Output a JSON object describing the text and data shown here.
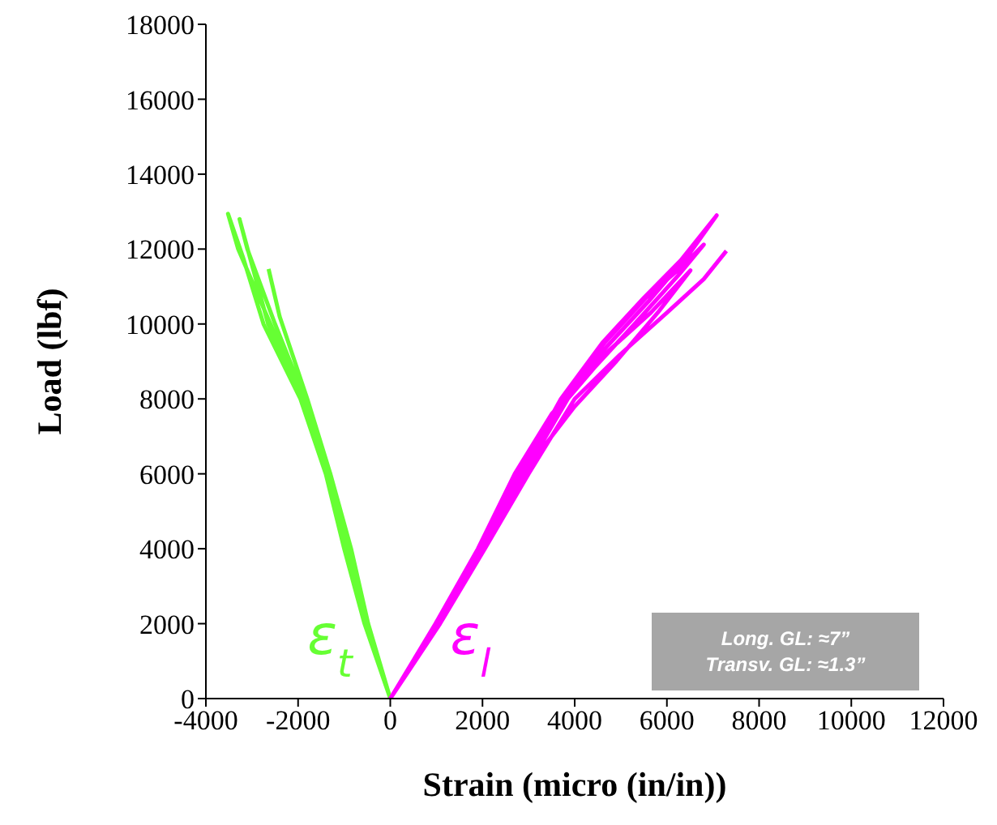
{
  "chart_data": {
    "type": "line",
    "xlabel": "Strain (micro (in/in))",
    "ylabel": "Load (lbf)",
    "xlim": [
      -4000,
      12000
    ],
    "xticks": [
      -4000,
      -2000,
      0,
      2000,
      4000,
      6000,
      8000,
      10000,
      12000
    ],
    "ylim": [
      0,
      18000
    ],
    "yticks": [
      0,
      2000,
      4000,
      6000,
      8000,
      10000,
      12000,
      14000,
      16000,
      18000
    ],
    "marker": "none",
    "line_style": "solid",
    "annotations": [
      "Long. GL: ≈7”",
      "Transv. GL: ≈1.3”"
    ],
    "series": [
      {
        "name": "ε$_{t}$",
        "color": "#66ff33",
        "x": [
          0,
          -560,
          -1000,
          -1400,
          -1950,
          -2750,
          -3200,
          -3520,
          -3300,
          -2600,
          -1900,
          -1350,
          -900,
          -500,
          0,
          -520,
          -950,
          -1350,
          -1900,
          -2650,
          -3050,
          -3270,
          -3100,
          -2500,
          -1850,
          -1300,
          -850,
          -480,
          0,
          -500,
          -900,
          -1300,
          -1800,
          -2400,
          -2640
        ],
        "values": [
          0,
          2000,
          4000,
          6000,
          8000,
          10000,
          11800,
          12940,
          12000,
          10000,
          8000,
          6000,
          4000,
          2000,
          0,
          2000,
          4000,
          6000,
          8000,
          10000,
          11800,
          12800,
          12000,
          10000,
          8000,
          6000,
          4000,
          2000,
          0,
          2000,
          4000,
          6000,
          8000,
          10200,
          11470
        ]
      },
      {
        "name": "ε$_{l}$",
        "color": "#ff00ff",
        "x": [
          0,
          1020,
          1950,
          2800,
          3700,
          4600,
          5500,
          6300,
          7080,
          6500,
          5600,
          4700,
          3800,
          2850,
          1950,
          1000,
          0,
          1000,
          1950,
          2850,
          3750,
          4650,
          5550,
          6300,
          6800,
          6250,
          5300,
          4400,
          3500,
          2700,
          1900,
          980,
          0,
          1050,
          2000,
          2900,
          3850,
          4750,
          5650,
          6510,
          5800,
          4900,
          4000,
          3000,
          2050,
          1050,
          0,
          1080,
          2050,
          3000,
          4000,
          5000,
          6000,
          6800,
          7290
        ],
        "values": [
          0,
          2000,
          4000,
          6000,
          8000,
          9500,
          10700,
          11700,
          12900,
          11900,
          10600,
          9400,
          8000,
          6000,
          4000,
          2000,
          0,
          2000,
          4000,
          6000,
          8000,
          9500,
          10700,
          11500,
          12120,
          11300,
          10000,
          8800,
          7600,
          6000,
          4000,
          2000,
          0,
          2000,
          4000,
          6000,
          8000,
          9300,
          10300,
          11430,
          10300,
          9000,
          7800,
          6200,
          4000,
          2000,
          0,
          2000,
          4000,
          6000,
          8000,
          9200,
          10300,
          11200,
          11950
        ]
      }
    ]
  }
}
